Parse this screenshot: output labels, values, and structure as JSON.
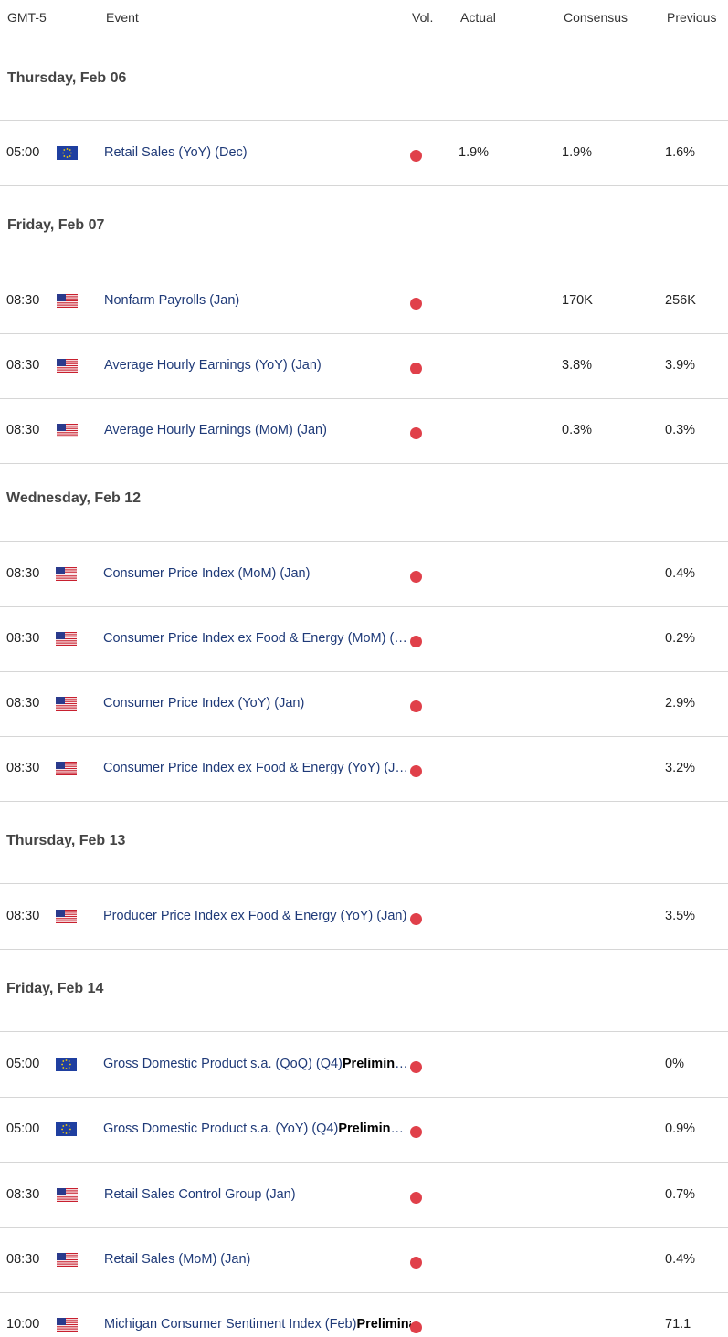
{
  "header": {
    "timezone": "GMT-5",
    "event": "Event",
    "vol": "Vol.",
    "actual": "Actual",
    "consensus": "Consensus",
    "previous": "Previous"
  },
  "colors": {
    "volatility_dot": "#e0404a",
    "event_text": "#1f3a78"
  },
  "days": [
    {
      "date": "Thursday, Feb 06",
      "events": [
        {
          "time": "05:00",
          "flag": "eu-flag-icon",
          "name": "Retail Sales (YoY) (Dec)",
          "suffix": "",
          "actual": "1.9%",
          "consensus": "1.9%",
          "previous": "1.6%"
        }
      ]
    },
    {
      "date": "Friday, Feb 07",
      "events": [
        {
          "time": "08:30",
          "flag": "us-flag-icon",
          "name": "Nonfarm Payrolls (Jan)",
          "suffix": "",
          "actual": "",
          "consensus": "170K",
          "previous": "256K"
        },
        {
          "time": "08:30",
          "flag": "us-flag-icon",
          "name": "Average Hourly Earnings (YoY) (Jan)",
          "suffix": "",
          "actual": "",
          "consensus": "3.8%",
          "previous": "3.9%"
        },
        {
          "time": "08:30",
          "flag": "us-flag-icon",
          "name": "Average Hourly Earnings (MoM) (Jan)",
          "suffix": "",
          "actual": "",
          "consensus": "0.3%",
          "previous": "0.3%"
        }
      ]
    },
    {
      "date": "Wednesday, Feb 12",
      "events": [
        {
          "time": "08:30",
          "flag": "us-flag-icon",
          "name": "Consumer Price Index (MoM) (Jan)",
          "suffix": "",
          "actual": "",
          "consensus": "",
          "previous": "0.4%"
        },
        {
          "time": "08:30",
          "flag": "us-flag-icon",
          "name": "Consumer Price Index ex Food & Energy (MoM) (Jan)",
          "suffix": "",
          "actual": "",
          "consensus": "",
          "previous": "0.2%"
        },
        {
          "time": "08:30",
          "flag": "us-flag-icon",
          "name": "Consumer Price Index (YoY) (Jan)",
          "suffix": "",
          "actual": "",
          "consensus": "",
          "previous": "2.9%"
        },
        {
          "time": "08:30",
          "flag": "us-flag-icon",
          "name": "Consumer Price Index ex Food & Energy (YoY) (Jan)",
          "suffix": "",
          "actual": "",
          "consensus": "",
          "previous": "3.2%"
        }
      ]
    },
    {
      "date": "Thursday, Feb 13",
      "events": [
        {
          "time": "08:30",
          "flag": "us-flag-icon",
          "name": "Producer Price Index ex Food & Energy (YoY) (Jan)",
          "suffix": "",
          "actual": "",
          "consensus": "",
          "previous": "3.5%"
        }
      ]
    },
    {
      "date": "Friday, Feb 14",
      "events": [
        {
          "time": "05:00",
          "flag": "eu-flag-icon",
          "name": "Gross Domestic Product s.a. (QoQ) (Q4)",
          "suffix": "Preliminary",
          "actual": "",
          "consensus": "",
          "previous": "0%"
        },
        {
          "time": "05:00",
          "flag": "eu-flag-icon",
          "name": "Gross Domestic Product s.a. (YoY) (Q4)",
          "suffix": "Preliminary",
          "actual": "",
          "consensus": "",
          "previous": "0.9%"
        },
        {
          "time": "08:30",
          "flag": "us-flag-icon",
          "name": "Retail Sales Control Group (Jan)",
          "suffix": "",
          "actual": "",
          "consensus": "",
          "previous": "0.7%"
        },
        {
          "time": "08:30",
          "flag": "us-flag-icon",
          "name": "Retail Sales (MoM) (Jan)",
          "suffix": "",
          "actual": "",
          "consensus": "",
          "previous": "0.4%"
        },
        {
          "time": "10:00",
          "flag": "us-flag-icon",
          "name": "Michigan Consumer Sentiment Index (Feb)",
          "suffix": "Preliminary",
          "actual": "",
          "consensus": "",
          "previous": "71.1"
        }
      ]
    }
  ]
}
